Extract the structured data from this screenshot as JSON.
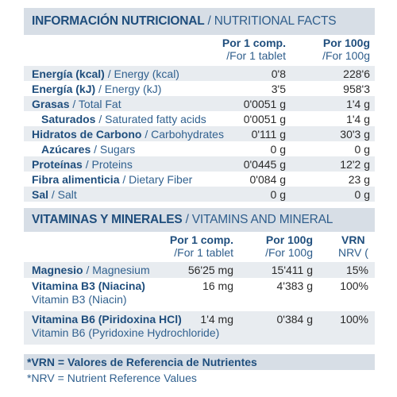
{
  "nutrition": {
    "title_es": "INFORMACIÓN NUTRICIONAL",
    "title_en": "/ NUTRITIONAL FACTS",
    "col1_es": "Por 1 comp.",
    "col1_en": "/For 1 tablet",
    "col2_es": "Por 100g",
    "col2_en": "/For 100g",
    "rows": [
      {
        "es": "Energía (kcal)",
        "en": "/ Energy (kcal)",
        "v1": "0'8",
        "v2": "228'6"
      },
      {
        "es": "Energía (kJ)",
        "en": "/ Energy (kJ)",
        "v1": "3'5",
        "v2": "958'3"
      },
      {
        "es": "Grasas",
        "en": "/ Total Fat",
        "v1": "0'0051 g",
        "v2": "1'4 g"
      },
      {
        "es": "Saturados",
        "en": "/ Saturated fatty acids",
        "v1": "0'0051 g",
        "v2": "1'4 g"
      },
      {
        "es": "Hidratos de Carbono",
        "en": "/ Carbohydrates",
        "v1": "0'111 g",
        "v2": "30'3 g"
      },
      {
        "es": "Azúcares",
        "en": "/ Sugars",
        "v1": "0 g",
        "v2": "0 g"
      },
      {
        "es": "Proteínas",
        "en": "/ Proteins",
        "v1": "0'0445 g",
        "v2": "12'2 g"
      },
      {
        "es": "Fibra alimenticia",
        "en": "/ Dietary Fiber",
        "v1": "0'084 g",
        "v2": "23 g"
      },
      {
        "es": "Sal",
        "en": "/ Salt",
        "v1": "0 g",
        "v2": "0 g"
      }
    ]
  },
  "vitamins": {
    "title_es": "VITAMINAS Y MINERALES",
    "title_en": "/ VITAMINS AND MINERAL",
    "col1_es": "Por 1 comp.",
    "col1_en": "/For 1 tablet",
    "col2_es": "Por 100g",
    "col2_en": "/For 100g",
    "col3_es": "VRN",
    "col3_en": "NRV (",
    "rows": [
      {
        "es": "Magnesio",
        "en": "/ Magnesium",
        "en2": "",
        "v1": "56'25 mg",
        "v2": "15'411 g",
        "v3": "15%"
      },
      {
        "es": "Vitamina B3 (Niacina)",
        "en": "",
        "en2": "Vitamin B3 (Niacin)",
        "v1": "16 mg",
        "v2": "4'383 g",
        "v3": "100%"
      },
      {
        "es": "Vitamina B6 (Piridoxina HCl)",
        "en": "",
        "en2": "Vitamin B6 (Pyridoxine Hydrochloride)",
        "v1": "1'4 mg",
        "v2": "0'384 g",
        "v3": "100%"
      }
    ]
  },
  "footer": {
    "line1": "*VRN = Valores de Referencia de Nutrientes",
    "line2": "*NRV = Nutrient Reference Values"
  }
}
